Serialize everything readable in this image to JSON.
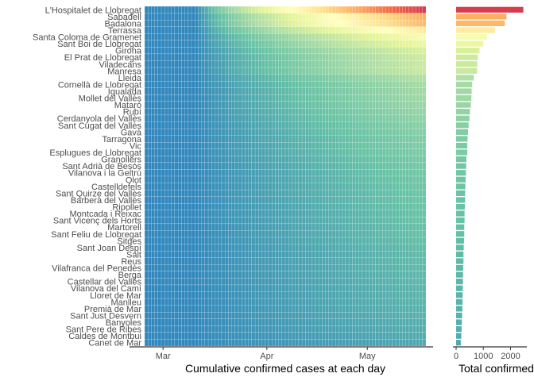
{
  "chart_data": [
    {
      "type": "heatmap",
      "xlabel": "Cumulative confirmed cases at each day",
      "ylabel": "",
      "x_ticks": [
        "Mar",
        "Apr",
        "May"
      ],
      "x_range": [
        "2020-02-25",
        "2020-05-18"
      ],
      "x_tick_dates": [
        "2020-03-01",
        "2020-04-01",
        "2020-05-01"
      ],
      "grid": false,
      "categories": [
        "L'Hospitalet de Llobregat",
        "Sabadell",
        "Badalona",
        "Terrassa",
        "Santa Coloma de Gramenet",
        "Sant Boi de Llobregat",
        "Girona",
        "El Prat de Llobregat",
        "Viladecans",
        "Manresa",
        "Lleida",
        "Cornellà de Llobregat",
        "Igualada",
        "Mollet del Vallès",
        "Mataró",
        "Rubí",
        "Cerdanyola del Vallès",
        "Sant Cugat del Vallès",
        "Gavà",
        "Tarragona",
        "Vic",
        "Esplugues de Llobregat",
        "Granollers",
        "Sant Adrià de Besòs",
        "Vilanova i la Geltrú",
        "Olot",
        "Castelldefels",
        "Sant Quirze del Vallès",
        "Barberà del Vallès",
        "Ripollet",
        "Montcada i Reixac",
        "Sant Vicenç dels Horts",
        "Martorell",
        "Sant Feliu de Llobregat",
        "Sitges",
        "Sant Joan Despí",
        "Salt",
        "Reus",
        "Vilafranca del Penedès",
        "Berga",
        "Castellar del Vallès",
        "Vilanova del Camí",
        "Lloret de Mar",
        "Manlleu",
        "Premià de Mar",
        "Sant Just Desvern",
        "Banyoles",
        "Sant Pere de Ribes",
        "Caldes de Montbui",
        "Canet de Mar"
      ],
      "color_scale": [
        "#3288bd",
        "#66c2a5",
        "#abdda4",
        "#e6f598",
        "#ffffbf",
        "#fee08b",
        "#fdae61",
        "#f46d43",
        "#d53e4f"
      ]
    },
    {
      "type": "bar",
      "orientation": "horizontal",
      "xlabel": "Total confirmed cases",
      "x_ticks": [
        0,
        1000,
        2000
      ],
      "xlim": [
        0,
        2600
      ],
      "grid": false,
      "categories_ref": "same as heatmap rows",
      "values": [
        2470,
        1850,
        1790,
        1430,
        1130,
        1000,
        860,
        800,
        780,
        770,
        650,
        590,
        570,
        560,
        540,
        510,
        490,
        460,
        440,
        420,
        410,
        410,
        380,
        370,
        360,
        350,
        340,
        330,
        330,
        320,
        310,
        310,
        300,
        300,
        290,
        280,
        270,
        270,
        260,
        255,
        250,
        245,
        240,
        235,
        230,
        220,
        210,
        200,
        190,
        170
      ]
    }
  ]
}
